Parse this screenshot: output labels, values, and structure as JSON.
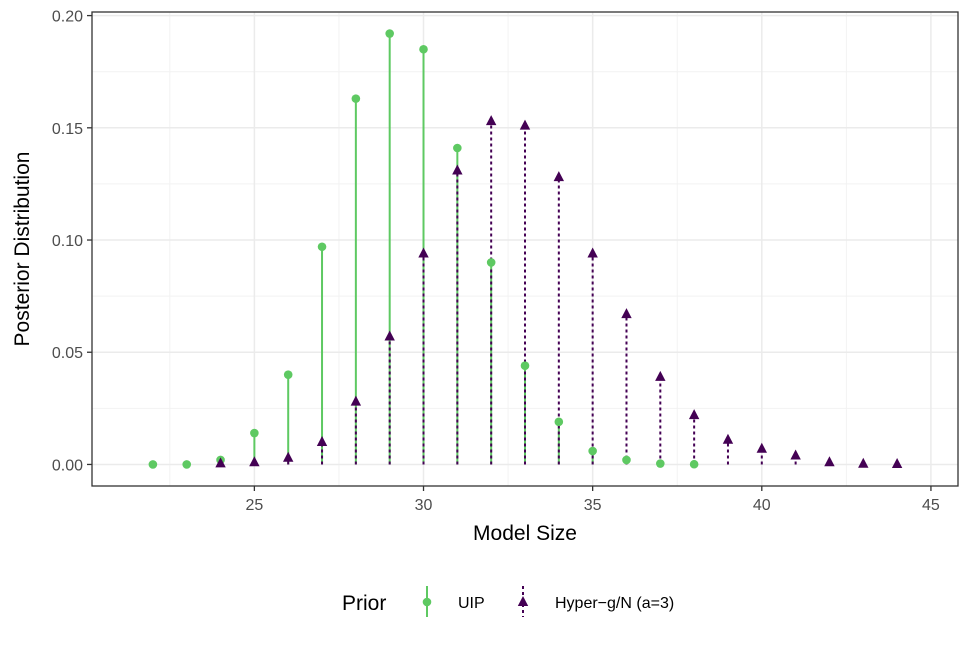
{
  "chart_data": {
    "type": "scatter",
    "xlabel": "Model Size",
    "ylabel": "Posterior Distribution",
    "xlim": [
      20.2,
      45.8
    ],
    "ylim": [
      -0.0096,
      0.2016
    ],
    "x_ticks": [
      25,
      30,
      35,
      40,
      45
    ],
    "x_tick_labels": [
      "25",
      "30",
      "35",
      "40",
      "45"
    ],
    "y_ticks": [
      0.0,
      0.05,
      0.1,
      0.15,
      0.2
    ],
    "y_tick_labels": [
      "0.00",
      "0.05",
      "0.10",
      "0.15",
      "0.20"
    ],
    "grid": true,
    "legend": {
      "title": "Prior",
      "position": "bottom"
    },
    "series": [
      {
        "name": "UIP",
        "color": "#5ec962",
        "marker": "circle",
        "line": "solid",
        "x": [
          22,
          23,
          24,
          25,
          26,
          27,
          28,
          29,
          30,
          31,
          32,
          33,
          34,
          35,
          36,
          37,
          38
        ],
        "y": [
          0.0,
          0.0,
          0.002,
          0.014,
          0.04,
          0.097,
          0.163,
          0.192,
          0.185,
          0.141,
          0.09,
          0.044,
          0.019,
          0.006,
          0.002,
          0.0004,
          0.0001
        ]
      },
      {
        "name": "Hyper−g/N (a=3)",
        "color": "#440154",
        "marker": "triangle",
        "line": "dotted",
        "x": [
          24,
          25,
          26,
          27,
          28,
          29,
          30,
          31,
          32,
          33,
          34,
          35,
          36,
          37,
          38,
          39,
          40,
          41,
          42,
          43,
          44
        ],
        "y": [
          0.0005,
          0.001,
          0.003,
          0.01,
          0.028,
          0.057,
          0.094,
          0.131,
          0.153,
          0.151,
          0.128,
          0.094,
          0.067,
          0.039,
          0.022,
          0.011,
          0.007,
          0.004,
          0.001,
          0.0003,
          0.0002
        ]
      }
    ]
  }
}
